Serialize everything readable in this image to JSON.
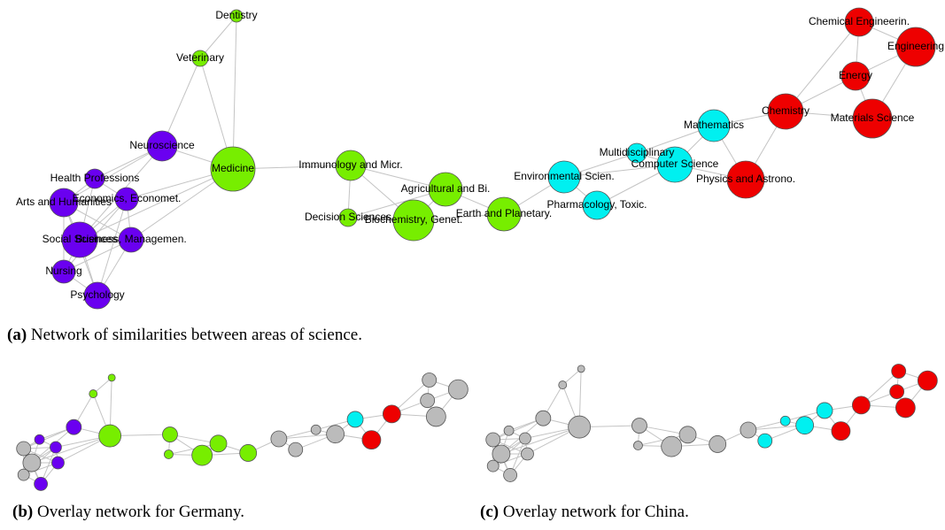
{
  "nodes": [
    {
      "label": "Dentistry",
      "color": "#77ee00"
    },
    {
      "label": "Veterinary",
      "color": "#77ee00"
    },
    {
      "label": "Neuroscience",
      "color": "#6a00f0"
    },
    {
      "label": "Medicine",
      "color": "#77ee00"
    },
    {
      "label": "Health Professions",
      "color": "#6a00f0"
    },
    {
      "label": "Arts and Humanities",
      "color": "#6a00f0"
    },
    {
      "label": "Economics, Economet.",
      "color": "#6a00f0"
    },
    {
      "label": "Social Sciences",
      "color": "#6a00f0"
    },
    {
      "label": "Business, Managemen.",
      "color": "#6a00f0"
    },
    {
      "label": "Nursing",
      "color": "#6a00f0"
    },
    {
      "label": "Psychology",
      "color": "#6a00f0"
    },
    {
      "label": "Immunology and Micr.",
      "color": "#77ee00"
    },
    {
      "label": "Decision Sciences",
      "color": "#77ee00"
    },
    {
      "label": "Agricultural and Bi.",
      "color": "#77ee00"
    },
    {
      "label": "Biochemistry, Genet.",
      "color": "#77ee00"
    },
    {
      "label": "Earth and Planetary.",
      "color": "#77ee00"
    },
    {
      "label": "Environmental Scien.",
      "color": "#00f0f0"
    },
    {
      "label": "Pharmacology, Toxic.",
      "color": "#00f0f0"
    },
    {
      "label": "Multidisciplinary",
      "color": "#00f0f0"
    },
    {
      "label": "Computer Science",
      "color": "#00f0f0"
    },
    {
      "label": "Mathematics",
      "color": "#00f0f0"
    },
    {
      "label": "Physics and Astrono.",
      "color": "#ee0000"
    },
    {
      "label": "Chemistry",
      "color": "#ee0000"
    },
    {
      "label": "Energy",
      "color": "#ee0000"
    },
    {
      "label": "Chemical Engineerin.",
      "color": "#ee0000"
    },
    {
      "label": "Engineering",
      "color": "#ee0000"
    },
    {
      "label": "Materials Science",
      "color": "#ee0000"
    }
  ],
  "caption": {
    "tag": "(a)",
    "text": "Network of similarities between areas of science."
  },
  "overlays": [
    {
      "tag": "(b)",
      "text": "Overlay network for Germany.",
      "colors": [
        "#77ee00",
        "#77ee00",
        "#6a00f0",
        "#77ee00",
        "#6a00f0",
        "#bbbbbb",
        "#6a00f0",
        "#bbbbbb",
        "#6a00f0",
        "#bbbbbb",
        "#6a00f0",
        "#77ee00",
        "#77ee00",
        "#77ee00",
        "#77ee00",
        "#77ee00",
        "#bbbbbb",
        "#bbbbbb",
        "#bbbbbb",
        "#bbbbbb",
        "#00f0f0",
        "#ee0000",
        "#ee0000",
        "#bbbbbb",
        "#bbbbbb",
        "#bbbbbb",
        "#bbbbbb"
      ]
    },
    {
      "tag": "(c)",
      "text": "Overlay network for China.",
      "colors": [
        "#bbbbbb",
        "#bbbbbb",
        "#bbbbbb",
        "#bbbbbb",
        "#bbbbbb",
        "#bbbbbb",
        "#bbbbbb",
        "#bbbbbb",
        "#bbbbbb",
        "#bbbbbb",
        "#bbbbbb",
        "#bbbbbb",
        "#bbbbbb",
        "#bbbbbb",
        "#bbbbbb",
        "#bbbbbb",
        "#bbbbbb",
        "#00f0f0",
        "#00f0f0",
        "#00f0f0",
        "#00f0f0",
        "#ee0000",
        "#ee0000",
        "#ee0000",
        "#ee0000",
        "#ee0000",
        "#ee0000"
      ]
    }
  ]
}
